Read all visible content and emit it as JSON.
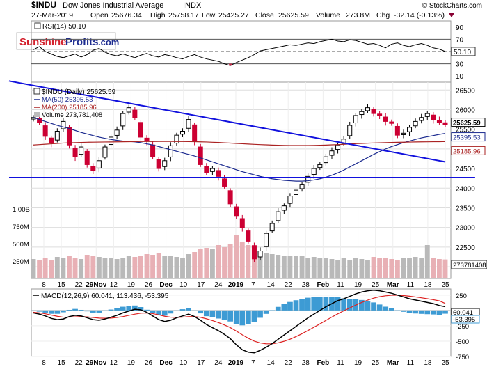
{
  "header": {
    "symbol": "$INDU",
    "name": "Dow Jones Industrial Average",
    "exchange": "INDX",
    "watermark": "© StockCharts.com",
    "date": "27-Mar-2019",
    "open_label": "Open",
    "open": "25676.34",
    "high_label": "High",
    "high": "25758.17",
    "low_label": "Low",
    "low": "25425.27",
    "close_label": "Close",
    "close": "25625.59",
    "volume_label": "Volume",
    "volume": "273.8M",
    "chg_label": "Chg",
    "chg": "-32.14 (-0.13%)"
  },
  "logo": {
    "part1": "Sunshine",
    "part2": "Profits",
    "part3": ".com"
  },
  "colors": {
    "up": "#000000",
    "down": "#cc0033",
    "ma50": "#1b2a8f",
    "ma200": "#aa2222",
    "trendline": "#1111dd",
    "volume_up": "#b9b9b9",
    "volume_down": "#e8b0b5",
    "macd_line": "#000000",
    "signal_line": "#dd2222",
    "histogram": "#3d9bd4",
    "label_box": "#1b2a8f"
  },
  "chart_data": [
    {
      "type": "line",
      "panel": "rsi",
      "title": "RSI(14) 50.10",
      "ylim": [
        0,
        100
      ],
      "yticks": [
        "90",
        "70",
        "50",
        "30",
        "10"
      ],
      "reference_lines": [
        70,
        50,
        30
      ],
      "last_value": "50.10",
      "values": [
        53,
        58,
        50,
        46,
        42,
        40,
        43,
        46,
        41,
        45,
        52,
        55,
        49,
        45,
        43,
        46,
        43,
        40,
        44,
        47,
        43,
        41,
        45,
        43,
        40,
        38,
        42,
        45,
        41,
        38,
        36,
        34,
        30,
        27,
        32,
        36,
        40,
        45,
        51,
        53,
        55,
        57,
        59,
        61,
        60,
        62,
        64,
        63,
        66,
        68,
        70,
        67,
        66,
        69,
        68,
        65,
        62,
        63,
        60,
        56,
        62,
        64,
        60,
        58,
        61,
        63,
        60,
        56,
        54,
        50
      ]
    },
    {
      "type": "candlestick",
      "panel": "price",
      "title": "$INDU (Daily) 25625.59",
      "legend": [
        "MA(50) 25395.53",
        "MA(200) 25185.96",
        "Volume 273,781,408"
      ],
      "ylim": [
        21700,
        26700
      ],
      "yticks": [
        "26500",
        "26000",
        "25500",
        "25000",
        "24500",
        "24000",
        "23500",
        "23000",
        "22500",
        "22000"
      ],
      "last_value_labels": [
        "25625.59",
        "25395.53",
        "25185.96"
      ],
      "x_tick_labels": [
        "8",
        "15",
        "22",
        "29Nov",
        "12",
        "19",
        "26",
        "Dec",
        "10",
        "17",
        "24",
        "2019",
        "7",
        "14",
        "22",
        "28",
        "Feb",
        "11",
        "19",
        "25",
        "Mar",
        "11",
        "18",
        "25"
      ],
      "closes": [
        25800,
        25680,
        25320,
        25150,
        25450,
        25700,
        25100,
        24800,
        25050,
        24600,
        24450,
        24700,
        25050,
        25300,
        25480,
        25900,
        26050,
        25800,
        25300,
        25200,
        24800,
        24500,
        24700,
        25080,
        25350,
        25450,
        25750,
        25200,
        24600,
        24400,
        24500,
        24300,
        24050,
        23600,
        23300,
        23000,
        22650,
        22200,
        22400,
        22850,
        23100,
        23400,
        23550,
        23800,
        23950,
        24100,
        24300,
        24500,
        24600,
        24800,
        24950,
        25100,
        25250,
        25600,
        25850,
        25950,
        26050,
        25900,
        25850,
        25700,
        25650,
        25350,
        25400,
        25550,
        25700,
        25800,
        25900,
        25750,
        25680,
        25625.59
      ],
      "ma50": [
        25800,
        25750,
        25700,
        25650,
        25600,
        25560,
        25520,
        25470,
        25420,
        25380,
        25340,
        25300,
        25270,
        25240,
        25220,
        25200,
        25190,
        25180,
        25160,
        25130,
        25100,
        25060,
        25020,
        24980,
        24940,
        24900,
        24860,
        24820,
        24770,
        24720,
        24670,
        24620,
        24570,
        24520,
        24470,
        24420,
        24380,
        24340,
        24300,
        24270,
        24240,
        24220,
        24200,
        24190,
        24180,
        24180,
        24190,
        24210,
        24240,
        24280,
        24330,
        24390,
        24460,
        24540,
        24620,
        24700,
        24780,
        24860,
        24930,
        25000,
        25060,
        25110,
        25160,
        25200,
        25240,
        25280,
        25310,
        25340,
        25370,
        25395.53
      ],
      "ma200": [
        25100,
        25110,
        25120,
        25130,
        25140,
        25150,
        25155,
        25160,
        25165,
        25170,
        25172,
        25174,
        25176,
        25178,
        25180,
        25182,
        25184,
        25186,
        25187,
        25188,
        25189,
        25190,
        25190,
        25190,
        25189,
        25188,
        25186,
        25184,
        25180,
        25176,
        25170,
        25164,
        25156,
        25148,
        25140,
        25132,
        25124,
        25116,
        25110,
        25104,
        25098,
        25094,
        25090,
        25088,
        25086,
        25086,
        25088,
        25090,
        25094,
        25098,
        25104,
        25110,
        25118,
        25126,
        25134,
        25140,
        25146,
        25152,
        25156,
        25160,
        25164,
        25168,
        25171,
        25174,
        25177,
        25179,
        25181,
        25183,
        25184,
        25185.96
      ],
      "trendlines": [
        {
          "from": [
            0,
            26730
          ],
          "to": [
            69,
            24670
          ]
        },
        {
          "from": [
            0,
            24270
          ],
          "to": [
            74,
            24270
          ]
        }
      ]
    },
    {
      "type": "bar",
      "panel": "volume",
      "yticks": [
        "1.00B",
        "750M",
        "500M",
        "250M"
      ],
      "last_value": "273781408",
      "values": [
        280,
        270,
        300,
        260,
        310,
        290,
        320,
        300,
        280,
        340,
        330,
        310,
        300,
        290,
        280,
        300,
        320,
        310,
        330,
        350,
        340,
        360,
        330,
        320,
        310,
        300,
        350,
        380,
        420,
        440,
        420,
        480,
        450,
        500,
        620,
        520,
        480,
        400,
        380,
        360,
        350,
        340,
        330,
        320,
        320,
        330,
        300,
        310,
        290,
        300,
        280,
        270,
        290,
        260,
        300,
        280,
        270,
        310,
        300,
        290,
        280,
        270,
        300,
        290,
        310,
        290,
        480,
        300,
        280,
        274
      ]
    },
    {
      "type": "line",
      "panel": "macd",
      "title": "MACD(12,26,9) 60.041, 113.436, -53.395",
      "ylim": [
        -750,
        350
      ],
      "yticks": [
        "250",
        "0",
        "-250",
        "-500",
        "-750"
      ],
      "last_value_labels": [
        "60.041",
        "-53.395"
      ],
      "macd": [
        -40,
        -60,
        -90,
        -130,
        -150,
        -140,
        -100,
        -80,
        -90,
        -120,
        -150,
        -160,
        -140,
        -110,
        -80,
        -40,
        -10,
        20,
        10,
        -30,
        -90,
        -150,
        -180,
        -160,
        -120,
        -90,
        -60,
        -100,
        -160,
        -230,
        -280,
        -330,
        -390,
        -460,
        -560,
        -640,
        -680,
        -690,
        -650,
        -600,
        -540,
        -470,
        -400,
        -330,
        -260,
        -190,
        -120,
        -60,
        0,
        60,
        110,
        160,
        190,
        230,
        270,
        300,
        320,
        330,
        320,
        300,
        280,
        250,
        220,
        190,
        170,
        150,
        130,
        110,
        80,
        60.041
      ],
      "signal": [
        -30,
        -40,
        -55,
        -75,
        -95,
        -110,
        -110,
        -105,
        -100,
        -105,
        -115,
        -125,
        -128,
        -125,
        -115,
        -100,
        -80,
        -60,
        -45,
        -42,
        -52,
        -72,
        -95,
        -110,
        -115,
        -110,
        -100,
        -100,
        -112,
        -136,
        -165,
        -198,
        -236,
        -280,
        -336,
        -397,
        -453,
        -500,
        -530,
        -544,
        -543,
        -528,
        -502,
        -468,
        -426,
        -379,
        -327,
        -274,
        -219,
        -163,
        -108,
        -55,
        -6,
        41,
        87,
        130,
        168,
        200,
        224,
        239,
        247,
        248,
        242,
        232,
        220,
        206,
        191,
        175,
        156,
        113.436
      ],
      "histogram": [
        -10,
        -20,
        -35,
        -55,
        -55,
        -30,
        10,
        25,
        10,
        -15,
        -35,
        -35,
        -12,
        15,
        35,
        60,
        70,
        80,
        55,
        12,
        -38,
        -78,
        -85,
        -50,
        -5,
        20,
        40,
        0,
        -48,
        -94,
        -115,
        -132,
        -154,
        -180,
        -224,
        -243,
        -227,
        -190,
        -120,
        -56,
        3,
        58,
        102,
        138,
        166,
        189,
        207,
        214,
        219,
        223,
        218,
        215,
        196,
        189,
        183,
        170,
        152,
        130,
        96,
        61,
        33,
        2,
        -22,
        -42,
        -50,
        -56,
        -61,
        -65,
        -76,
        -53.395
      ]
    }
  ]
}
